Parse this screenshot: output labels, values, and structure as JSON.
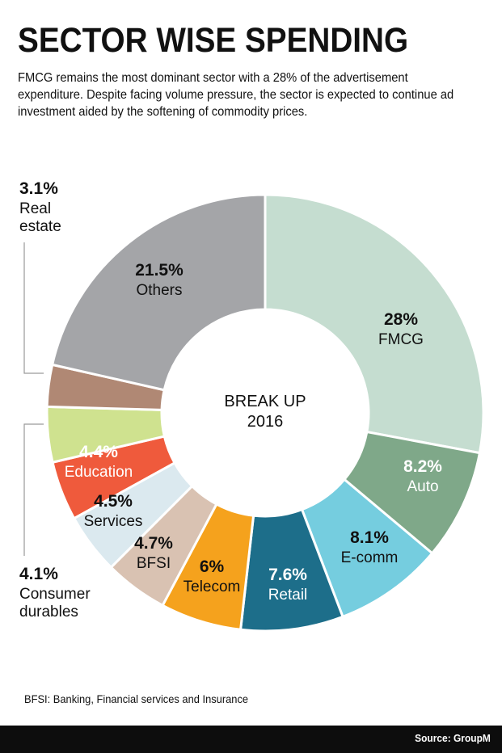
{
  "title": "SECTOR WISE SPENDING",
  "subtitle": "FMCG remains the most dominant sector with a 28% of the advertisement expenditure. Despite facing volume pressure, the sector is expected to continue ad investment aided by the softening of commodity prices.",
  "footnote": "BFSI: Banking, Financial services and Insurance",
  "source": "Source: GroupM",
  "chart_data": {
    "type": "pie",
    "donut": true,
    "center_label": [
      "BREAK UP",
      "2016"
    ],
    "slices": [
      {
        "label": "FMCG",
        "value_label": "28%",
        "value": 28,
        "color": "#c5ddd0"
      },
      {
        "label": "Auto",
        "value_label": "8.2%",
        "value": 8.2,
        "color": "#7fa889"
      },
      {
        "label": "E-comm",
        "value_label": "8.1%",
        "value": 8.1,
        "color": "#75cddf"
      },
      {
        "label": "Retail",
        "value_label": "7.6%",
        "value": 7.6,
        "color": "#1d6e8a"
      },
      {
        "label": "Telecom",
        "value_label": "6%",
        "value": 6,
        "color": "#f5a21d"
      },
      {
        "label": "BFSI",
        "value_label": "4.7%",
        "value": 4.7,
        "color": "#d9c2b2"
      },
      {
        "label": "Services",
        "value_label": "4.5%",
        "value": 4.5,
        "color": "#dbe9ef"
      },
      {
        "label": "Education",
        "value_label": "4.4%",
        "value": 4.4,
        "color": "#ef5a3c"
      },
      {
        "label": [
          "Consumer",
          "durables"
        ],
        "value_label": "4.1%",
        "value": 4.1,
        "color": "#cfe28f"
      },
      {
        "label": [
          "Real",
          "estate"
        ],
        "value_label": "3.1%",
        "value": 3.1,
        "color": "#b08874"
      },
      {
        "label": "Others",
        "value_label": "21.5%",
        "value": 21.5,
        "color": "#a4a5a8"
      }
    ]
  }
}
